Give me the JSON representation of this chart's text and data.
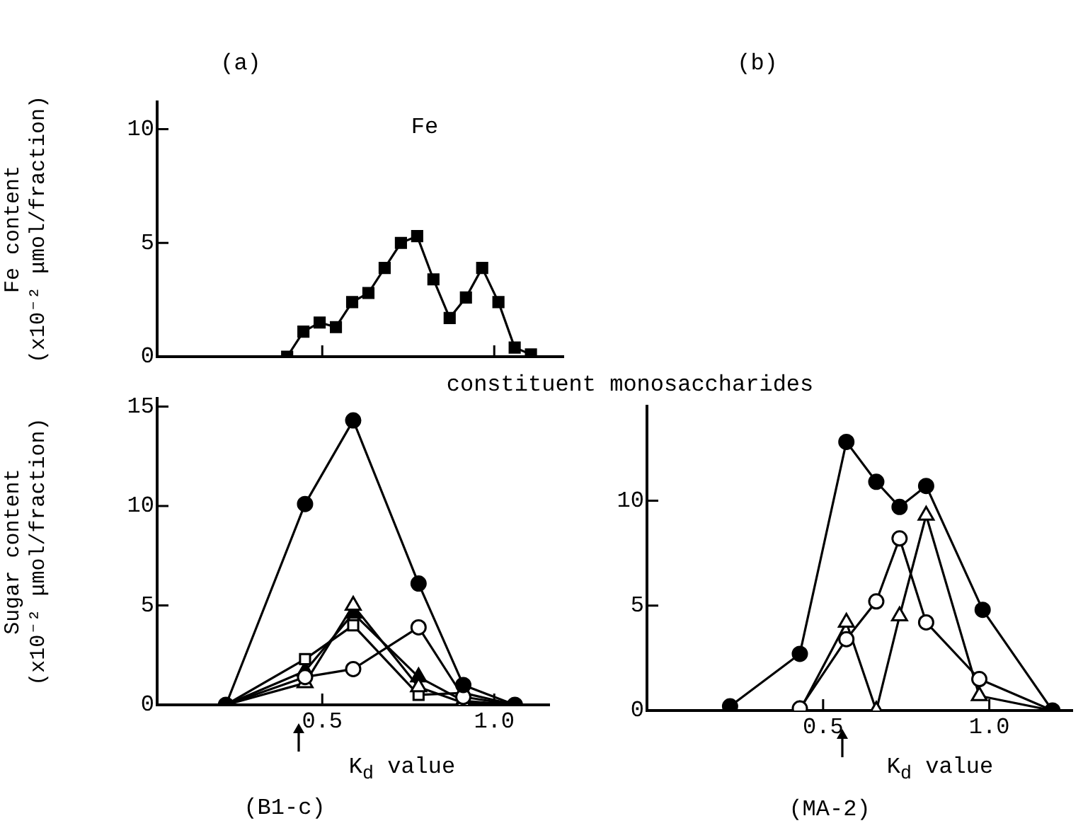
{
  "chart_data": [
    {
      "type": "line",
      "title": "(a)",
      "ylabel": "Fe content\n(x10⁻² μmol/fraction)",
      "annotations": [
        "Fe"
      ],
      "ylim": [
        0,
        11.2
      ],
      "yticks": [
        0,
        5,
        10
      ],
      "tick_labels": "y",
      "marker": "square",
      "categories": [
        null,
        null,
        null,
        null,
        null,
        null,
        null,
        null,
        null,
        null,
        null,
        null,
        null,
        null,
        null,
        null,
        null,
        null,
        null,
        null,
        null,
        null,
        null,
        null,
        null,
        null
      ],
      "series": [
        {
          "color": "#000000",
          "values": [
            null,
            null,
            null,
            null,
            null,
            null,
            null,
            null,
            0,
            1.1,
            1.5,
            1.3,
            2.4,
            2.8,
            3.9,
            5.0,
            5.3,
            3.4,
            1.7,
            2.6,
            3.9,
            2.4,
            0.4,
            0.1,
            null,
            null
          ]
        }
      ]
    },
    {
      "type": "line",
      "xlabel": "K$_{d}$ value",
      "ylabel": "Sugar content\n(x10⁻² μmol/fraction)",
      "annotations": [
        "constituent monosaccharides",
        "(B1-c)"
      ],
      "xlim": [
        0.02,
        1.16
      ],
      "ylim": [
        0,
        15.4
      ],
      "xticks": [
        0.5,
        {
          "value": 1,
          "label": "1.0"
        }
      ],
      "yticks": [
        0,
        5,
        10,
        15
      ],
      "x": [
        0.22,
        0.45,
        0.59,
        0.78,
        0.91,
        1.06
      ],
      "series": [
        {
          "color": "#000000",
          "marker": "circle",
          "values": [
            0,
            10.1,
            14.3,
            6.1,
            1.0,
            0
          ]
        },
        {
          "color": "#000000",
          "marker": "circle",
          "values": [
            0,
            1.4,
            1.8,
            3.9,
            0.4,
            0
          ]
        },
        {
          "color": "#000000",
          "marker": "triangle",
          "values": [
            0,
            1.1,
            5.0,
            0.9,
            0.1,
            0
          ]
        },
        {
          "color": "#000000",
          "marker": "square",
          "values": [
            0,
            2.3,
            4.0,
            0.5,
            0.6,
            0
          ]
        },
        {
          "color": "#000000",
          "marker": "triangle",
          "values": [
            0,
            1.7,
            4.6,
            1.4,
            0.2,
            0
          ]
        }
      ]
    },
    {
      "type": "line",
      "title": "(b)",
      "xlabel": "K$_{d}$ value",
      "annotations": [
        "(MA-2)"
      ],
      "xlim": [
        -0.03,
        1.25
      ],
      "ylim": [
        0,
        14.5
      ],
      "xticks": [
        0.5,
        {
          "value": 1,
          "label": "1.0"
        }
      ],
      "yticks": [
        0,
        5,
        10
      ],
      "series": [
        {
          "color": "#000000",
          "marker": "circle",
          "x": [
            0.22,
            0.43,
            0.57,
            0.66,
            0.73,
            0.81,
            0.98,
            1.19
          ],
          "values": [
            0.2,
            2.7,
            12.8,
            10.9,
            9.7,
            10.7,
            4.8,
            0
          ]
        },
        {
          "color": "#000000",
          "marker": "circle",
          "x": [
            0.43,
            0.57,
            0.66,
            0.73,
            0.81,
            0.97,
            1.19
          ],
          "values": [
            0.1,
            3.4,
            5.2,
            8.2,
            4.2,
            1.5,
            0
          ]
        },
        {
          "color": "#000000",
          "marker": "triangle",
          "x": [
            0.43,
            0.57,
            0.66,
            0.73,
            0.81,
            0.97,
            1.19
          ],
          "values": [
            0,
            4.2,
            0,
            4.5,
            9.3,
            0.7,
            0
          ]
        }
      ]
    }
  ]
}
